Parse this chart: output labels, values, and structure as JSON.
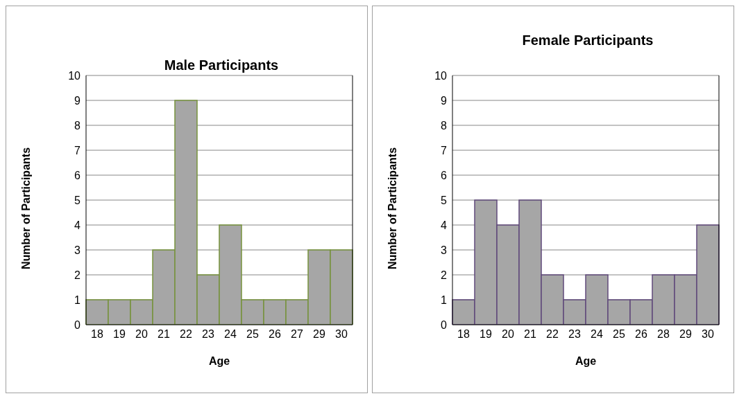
{
  "chart_data": [
    {
      "type": "bar",
      "title": "Male Participants",
      "xlabel": "Age",
      "ylabel": "Number of Participants",
      "categories": [
        "18",
        "19",
        "20",
        "21",
        "22",
        "23",
        "24",
        "25",
        "26",
        "27",
        "29",
        "30"
      ],
      "values": [
        1,
        1,
        1,
        3,
        9,
        2,
        4,
        1,
        1,
        1,
        3,
        3
      ],
      "color": "#a6a6a6",
      "ylim": [
        0,
        10
      ],
      "yticks": [
        0,
        1,
        2,
        3,
        4,
        5,
        6,
        7,
        8,
        9,
        10
      ],
      "grid": "y"
    },
    {
      "type": "bar",
      "title": "Female Participants",
      "xlabel": "Age",
      "ylabel": "Number of Participants",
      "categories": [
        "18",
        "19",
        "20",
        "21",
        "22",
        "23",
        "24",
        "25",
        "26",
        "28",
        "29",
        "30"
      ],
      "values": [
        1,
        5,
        4,
        5,
        2,
        1,
        2,
        1,
        1,
        2,
        2,
        4
      ],
      "color": "#a6a6a6",
      "ylim": [
        0,
        10
      ],
      "yticks": [
        0,
        1,
        2,
        3,
        4,
        5,
        6,
        7,
        8,
        9,
        10
      ],
      "grid": "y"
    }
  ]
}
